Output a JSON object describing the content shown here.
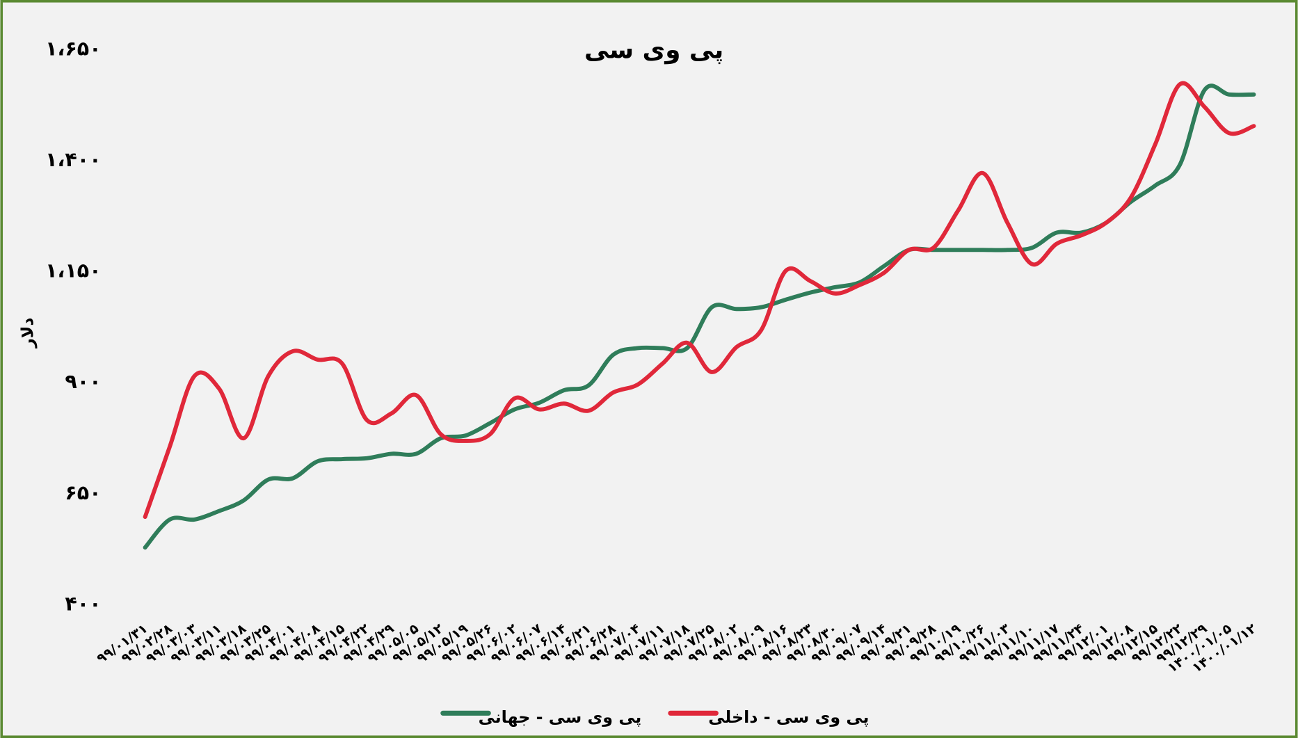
{
  "chart_data": {
    "type": "line",
    "title": "پی وی سی",
    "y_label": "دلار",
    "categories": [
      "۹۹/۰۱/۳۱",
      "۹۹/۰۲/۲۸",
      "۹۹/۰۳/۰۳",
      "۹۹/۰۳/۱۱",
      "۹۹/۰۳/۱۸",
      "۹۹/۰۳/۲۵",
      "۹۹/۰۴/۰۱",
      "۹۹/۰۴/۰۸",
      "۹۹/۰۴/۱۵",
      "۹۹/۰۴/۲۲",
      "۹۹/۰۴/۲۹",
      "۹۹/۰۵/۰۵",
      "۹۹/۰۵/۱۲",
      "۹۹/۰۵/۱۹",
      "۹۹/۰۵/۲۶",
      "۹۹/۰۶/۰۲",
      "۹۹/۰۶/۰۷",
      "۹۹/۰۶/۱۴",
      "۹۹/۰۶/۲۱",
      "۹۹/۰۶/۲۸",
      "۹۹/۰۷/۰۴",
      "۹۹/۰۷/۱۱",
      "۹۹/۰۷/۱۸",
      "۹۹/۰۷/۲۵",
      "۹۹/۰۸/۰۲",
      "۹۹/۰۸/۰۹",
      "۹۹/۰۸/۱۶",
      "۹۹/۰۸/۲۳",
      "۹۹/۰۸/۳۰",
      "۹۹/۰۹/۰۷",
      "۹۹/۰۹/۱۴",
      "۹۹/۰۹/۲۱",
      "۹۹/۰۹/۲۸",
      "۹۹/۱۰/۱۹",
      "۹۹/۱۰/۲۶",
      "۹۹/۱۱/۰۳",
      "۹۹/۱۱/۱۰",
      "۹۹/۱۱/۱۷",
      "۹۹/۱۱/۲۴",
      "۹۹/۱۲/۰۱",
      "۹۹/۱۲/۰۸",
      "۹۹/۱۲/۱۵",
      "۹۹/۱۲/۲۲",
      "۹۹/۱۲/۲۹",
      "۱۴۰۰/۰۱/۰۵",
      "۱۴۰۰/۰۱/۱۲"
    ],
    "series": [
      {
        "name": "پی وی سی - جهانی",
        "color": "#2f7d5a",
        "values": [
          529,
          592,
          592,
          611,
          635,
          682,
          685,
          723,
          728,
          730,
          740,
          740,
          775,
          781,
          809,
          840,
          855,
          883,
          894,
          963,
          978,
          978,
          978,
          1070,
          1066,
          1070,
          1087,
          1103,
          1115,
          1126,
          1163,
          1199,
          1199,
          1199,
          1199,
          1199,
          1204,
          1238,
          1238,
          1260,
          1307,
          1344,
          1391,
          1559,
          1549,
          1549
        ]
      },
      {
        "name": "پی وی سی - داخلی",
        "color": "#e0283a",
        "values": [
          598,
          756,
          915,
          887,
          775,
          915,
          971,
          952,
          943,
          816,
          831,
          872,
          784,
          769,
          784,
          865,
          840,
          853,
          837,
          878,
          896,
          943,
          990,
          924,
          980,
          1018,
          1152,
          1129,
          1101,
          1120,
          1148,
          1199,
          1204,
          1288,
          1372,
          1260,
          1167,
          1213,
          1232,
          1260,
          1316,
          1437,
          1572,
          1521,
          1462,
          1478
        ]
      }
    ],
    "ylim": [
      400,
      1650
    ],
    "yticks": [
      {
        "value": 400,
        "label": "۴۰۰"
      },
      {
        "value": 650,
        "label": "۶۵۰"
      },
      {
        "value": 900,
        "label": "۹۰۰"
      },
      {
        "value": 1150,
        "label": "۱،۱۵۰"
      },
      {
        "value": 1400,
        "label": "۱،۴۰۰"
      },
      {
        "value": 1650,
        "label": "۱،۶۵۰"
      }
    ],
    "grid": false,
    "legend": "bottom"
  }
}
